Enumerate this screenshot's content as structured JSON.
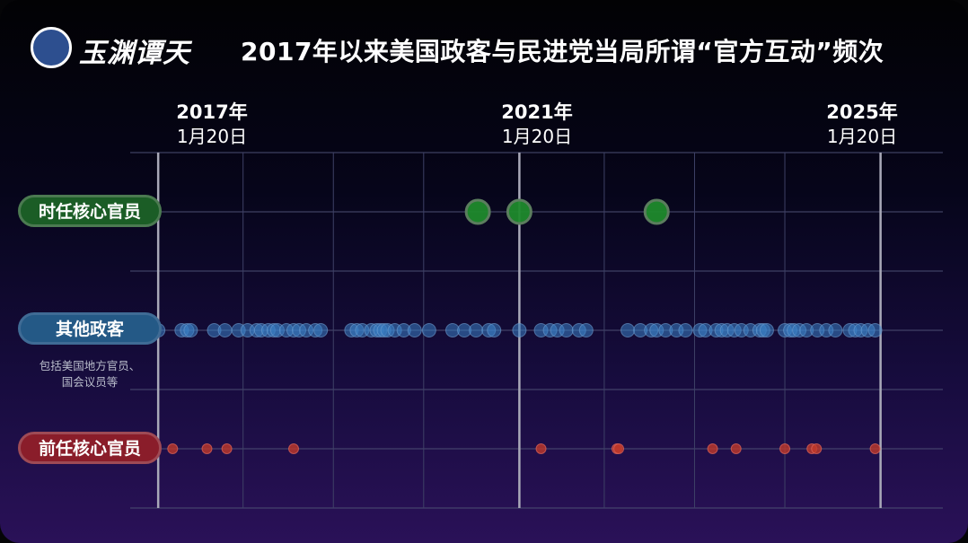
{
  "page": {
    "title": "2017年以来美国政客与民进党当局所谓“官方互动”频次",
    "logo_text": "玉渊谭天"
  },
  "chart_data": {
    "type": "scatter",
    "title": "2017年以来美国政客与民进党当局所谓“官方互动”频次",
    "x_axis": {
      "range": [
        2016.75,
        2025.75
      ],
      "gridlines": [
        2017.06,
        2018,
        2019,
        2020,
        2021.06,
        2022,
        2023,
        2024,
        2025.06
      ],
      "major": [
        {
          "x": 2017.06,
          "year": "2017年",
          "date": "1月20日"
        },
        {
          "x": 2021.06,
          "year": "2021年",
          "date": "1月20日"
        },
        {
          "x": 2025.06,
          "year": "2025年",
          "date": "1月20日"
        }
      ]
    },
    "categories": [
      {
        "key": "current",
        "label": "时任核心官员",
        "color": "#1f8a2c",
        "note": ""
      },
      {
        "key": "other",
        "label": "其他政客",
        "color": "#3b7fc4",
        "note": "包括美国地方官员、|国会议员等"
      },
      {
        "key": "former",
        "label": "前任核心官员",
        "color": "#c0392b",
        "note": ""
      }
    ],
    "series": [
      {
        "category": "current",
        "x": [
          2016.94,
          2020.6,
          2021.06,
          2022.58
        ]
      },
      {
        "category": "other",
        "x": [
          2017.06,
          2017.32,
          2017.38,
          2017.42,
          2017.68,
          2017.8,
          2017.95,
          2018.05,
          2018.15,
          2018.2,
          2018.28,
          2018.34,
          2018.38,
          2018.48,
          2018.56,
          2018.62,
          2018.7,
          2018.8,
          2018.86,
          2019.2,
          2019.26,
          2019.32,
          2019.42,
          2019.48,
          2019.52,
          2019.56,
          2019.6,
          2019.68,
          2019.78,
          2019.9,
          2020.06,
          2020.32,
          2020.45,
          2020.58,
          2020.72,
          2020.78,
          2021.06,
          2021.3,
          2021.4,
          2021.48,
          2021.58,
          2021.72,
          2021.8,
          2022.26,
          2022.4,
          2022.52,
          2022.58,
          2022.68,
          2022.8,
          2022.9,
          2023.06,
          2023.12,
          2023.24,
          2023.3,
          2023.36,
          2023.44,
          2023.52,
          2023.62,
          2023.72,
          2023.76,
          2023.8,
          2024.0,
          2024.06,
          2024.1,
          2024.16,
          2024.24,
          2024.36,
          2024.46,
          2024.56,
          2024.72,
          2024.78,
          2024.84,
          2024.92,
          2025.0
        ]
      },
      {
        "category": "former",
        "x": [
          2017.22,
          2017.6,
          2017.82,
          2018.56,
          2021.3,
          2022.14,
          2022.16,
          2023.2,
          2023.46,
          2024.0,
          2024.3,
          2024.35,
          2025.0
        ]
      }
    ]
  }
}
